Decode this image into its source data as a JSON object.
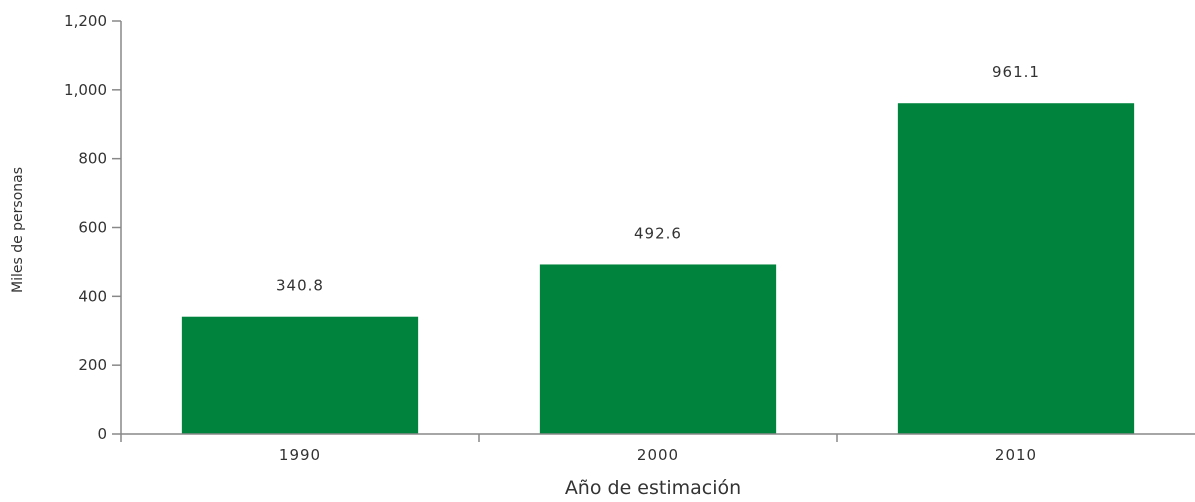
{
  "chart_data": {
    "type": "bar",
    "categories": [
      "1990",
      "2000",
      "2010"
    ],
    "values": [
      340.8,
      492.6,
      961.1
    ],
    "value_labels": [
      "340.8",
      "492.6",
      "961.1"
    ],
    "xlabel": "Año de estimación",
    "ylabel": "Miles de personas",
    "ylim": [
      0,
      1200
    ],
    "yticks": [
      0,
      200,
      400,
      600,
      800,
      1000,
      1200
    ],
    "ytick_labels": [
      "0",
      "200",
      "400",
      "600",
      "800",
      "1,000",
      "1,200"
    ],
    "grid": false,
    "legend": "none",
    "bar_color": "#00843D",
    "axis_color": "#888888"
  }
}
